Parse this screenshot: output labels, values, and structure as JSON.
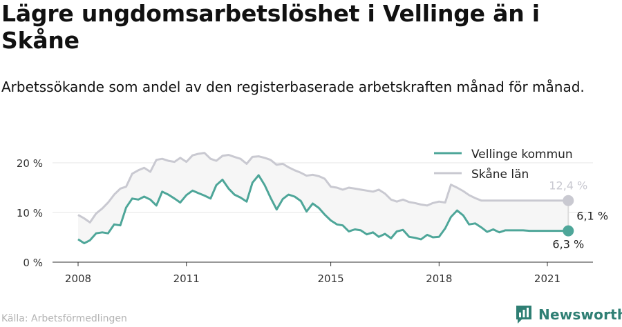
{
  "title": "Lägre ungdomsarbetslöshet i Vellinge än i Skåne",
  "subtitle": "Arbetssökande som andel av den registerbaserade arbetskraften månad för månad.",
  "source": "Källa: Arbetsförmedlingen",
  "brand": "Newsworthy",
  "colors": {
    "vellinge": "#4ea699",
    "skane": "#c9c9d1",
    "band": "#f6f6f6",
    "brand": "#2f7f74"
  },
  "chart_data": {
    "type": "line",
    "x_unit": "year",
    "xlim": [
      2007.7,
      2022.0
    ],
    "ylim": [
      0,
      22
    ],
    "y_ticks": [
      0,
      10,
      20
    ],
    "y_tick_labels": [
      "0 %",
      "10 %",
      "20 %"
    ],
    "x_ticks": [
      2008,
      2011,
      2015,
      2018,
      2021
    ],
    "x_tick_labels": [
      "2008",
      "2011",
      "2015",
      "2018",
      "2021"
    ],
    "legend_position": "top-right",
    "series": [
      {
        "name": "Vellinge kommun",
        "x": [
          2008.0,
          2008.17,
          2008.33,
          2008.5,
          2008.67,
          2008.83,
          2009.0,
          2009.17,
          2009.33,
          2009.5,
          2009.67,
          2009.83,
          2010.0,
          2010.17,
          2010.33,
          2010.5,
          2010.67,
          2010.83,
          2011.0,
          2011.17,
          2011.33,
          2011.5,
          2011.67,
          2011.83,
          2012.0,
          2012.17,
          2012.33,
          2012.5,
          2012.67,
          2012.83,
          2013.0,
          2013.17,
          2013.33,
          2013.5,
          2013.67,
          2013.83,
          2014.0,
          2014.17,
          2014.33,
          2014.5,
          2014.67,
          2014.83,
          2015.0,
          2015.17,
          2015.33,
          2015.5,
          2015.67,
          2015.83,
          2016.0,
          2016.17,
          2016.33,
          2016.5,
          2016.67,
          2016.83,
          2017.0,
          2017.17,
          2017.33,
          2017.5,
          2017.67,
          2017.83,
          2018.0,
          2018.17,
          2018.33,
          2018.5,
          2018.67,
          2018.83,
          2019.0,
          2019.17,
          2019.33,
          2019.5,
          2019.67,
          2019.83,
          2020.0,
          2020.17,
          2020.33,
          2020.5,
          2020.67,
          2020.83,
          2021.0,
          2021.17,
          2021.33,
          2021.5,
          2021.58
        ],
        "values": [
          4.6,
          3.8,
          4.4,
          5.8,
          6.0,
          5.8,
          7.6,
          7.4,
          11.0,
          12.8,
          12.6,
          13.2,
          12.6,
          11.4,
          14.2,
          13.6,
          12.8,
          12.0,
          13.5,
          14.4,
          13.9,
          13.4,
          12.8,
          15.5,
          16.6,
          14.8,
          13.6,
          13.0,
          12.2,
          16.0,
          17.5,
          15.5,
          13.0,
          10.6,
          12.7,
          13.6,
          13.2,
          12.3,
          10.2,
          11.8,
          10.9,
          9.6,
          8.4,
          7.6,
          7.4,
          6.2,
          6.6,
          6.4,
          5.6,
          6.0,
          5.1,
          5.7,
          4.8,
          6.2,
          6.5,
          5.1,
          4.9,
          4.6,
          5.5,
          5.0,
          5.1,
          6.8,
          9.1,
          10.4,
          9.4,
          7.6,
          7.8,
          7.0,
          6.1,
          6.6,
          6.0,
          6.4,
          6.4,
          6.4,
          6.4,
          6.3,
          6.3,
          6.3,
          6.3,
          6.3,
          6.3,
          6.3,
          6.3
        ]
      },
      {
        "name": "Skåne län",
        "x": [
          2008.0,
          2008.17,
          2008.33,
          2008.5,
          2008.67,
          2008.83,
          2009.0,
          2009.17,
          2009.33,
          2009.5,
          2009.67,
          2009.83,
          2010.0,
          2010.17,
          2010.33,
          2010.5,
          2010.67,
          2010.83,
          2011.0,
          2011.17,
          2011.33,
          2011.5,
          2011.67,
          2011.83,
          2012.0,
          2012.17,
          2012.33,
          2012.5,
          2012.67,
          2012.83,
          2013.0,
          2013.17,
          2013.33,
          2013.5,
          2013.67,
          2013.83,
          2014.0,
          2014.17,
          2014.33,
          2014.5,
          2014.67,
          2014.83,
          2015.0,
          2015.17,
          2015.33,
          2015.5,
          2015.67,
          2015.83,
          2016.0,
          2016.17,
          2016.33,
          2016.5,
          2016.67,
          2016.83,
          2017.0,
          2017.17,
          2017.33,
          2017.5,
          2017.67,
          2017.83,
          2018.0,
          2018.17,
          2018.33,
          2018.5,
          2018.67,
          2018.83,
          2019.0,
          2019.17,
          2019.33,
          2019.5,
          2019.67,
          2019.83,
          2020.0,
          2020.17,
          2020.33,
          2020.5,
          2020.67,
          2020.83,
          2021.0,
          2021.17,
          2021.33,
          2021.5,
          2021.58
        ],
        "values": [
          9.5,
          8.8,
          8.0,
          9.8,
          10.8,
          12.0,
          13.6,
          14.8,
          15.2,
          17.8,
          18.5,
          19.0,
          18.2,
          20.6,
          20.8,
          20.4,
          20.2,
          21.0,
          20.2,
          21.5,
          21.8,
          22.0,
          20.8,
          20.4,
          21.4,
          21.6,
          21.2,
          20.8,
          19.8,
          21.2,
          21.3,
          21.0,
          20.6,
          19.6,
          19.8,
          19.1,
          18.5,
          18.0,
          17.4,
          17.6,
          17.3,
          16.8,
          15.2,
          15.0,
          14.6,
          15.0,
          14.8,
          14.6,
          14.4,
          14.2,
          14.6,
          13.8,
          12.6,
          12.2,
          12.6,
          12.1,
          11.9,
          11.6,
          11.4,
          11.9,
          12.2,
          12.0,
          15.6,
          15.0,
          14.3,
          13.5,
          12.9,
          12.4,
          12.4,
          12.4,
          12.4,
          12.4,
          12.4,
          12.4,
          12.4,
          12.4,
          12.4,
          12.4,
          12.4,
          12.4,
          12.4,
          12.4,
          12.4
        ]
      }
    ],
    "end_labels": {
      "skane": "12,4 %",
      "vellinge": "6,3 %",
      "difference": "6,1 %"
    }
  }
}
